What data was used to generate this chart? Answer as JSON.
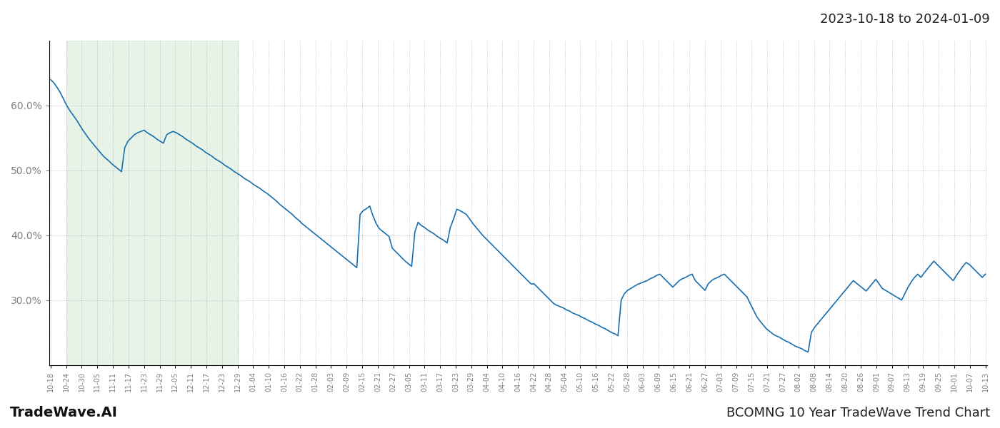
{
  "date_range_label": "2023-10-18 to 2024-01-09",
  "footer_left": "TradeWave.AI",
  "footer_right": "BCOMNG 10 Year TradeWave Trend Chart",
  "line_color": "#1a6faf",
  "line_width": 1.2,
  "shade_color": "#c8e6c9",
  "shade_alpha": 0.45,
  "bg_color": "#ffffff",
  "grid_color": "#aaaaaa",
  "grid_style": ":",
  "axis_color": "#000000",
  "tick_label_color": "#808080",
  "ylim_min": 0.2,
  "ylim_max": 0.7,
  "yticks": [
    0.3,
    0.4,
    0.5,
    0.6
  ],
  "x_labels": [
    "10-18",
    "10-24",
    "10-30",
    "11-05",
    "11-11",
    "11-17",
    "11-23",
    "11-29",
    "12-05",
    "12-11",
    "12-17",
    "12-23",
    "12-29",
    "01-04",
    "01-10",
    "01-16",
    "01-22",
    "01-28",
    "02-03",
    "02-09",
    "02-15",
    "02-21",
    "02-27",
    "03-05",
    "03-11",
    "03-17",
    "03-23",
    "03-29",
    "04-04",
    "04-10",
    "04-16",
    "04-22",
    "04-28",
    "05-04",
    "05-10",
    "05-16",
    "05-22",
    "05-28",
    "06-03",
    "06-09",
    "06-15",
    "06-21",
    "06-27",
    "07-03",
    "07-09",
    "07-15",
    "07-21",
    "07-27",
    "08-02",
    "08-08",
    "08-14",
    "08-20",
    "08-26",
    "09-01",
    "09-07",
    "09-13",
    "09-19",
    "09-25",
    "10-01",
    "10-07",
    "10-13"
  ],
  "shade_label_start": "10-24",
  "shade_label_end": "12-29",
  "y_values": [
    0.64,
    0.635,
    0.628,
    0.62,
    0.61,
    0.6,
    0.592,
    0.585,
    0.578,
    0.57,
    0.562,
    0.555,
    0.548,
    0.542,
    0.536,
    0.53,
    0.524,
    0.519,
    0.515,
    0.51,
    0.506,
    0.502,
    0.498,
    0.535,
    0.545,
    0.55,
    0.555,
    0.558,
    0.56,
    0.562,
    0.558,
    0.555,
    0.552,
    0.548,
    0.545,
    0.542,
    0.555,
    0.558,
    0.56,
    0.558,
    0.555,
    0.552,
    0.548,
    0.545,
    0.542,
    0.538,
    0.535,
    0.532,
    0.528,
    0.525,
    0.522,
    0.518,
    0.515,
    0.512,
    0.508,
    0.505,
    0.502,
    0.498,
    0.495,
    0.492,
    0.488,
    0.485,
    0.482,
    0.478,
    0.475,
    0.472,
    0.468,
    0.465,
    0.461,
    0.457,
    0.453,
    0.448,
    0.444,
    0.44,
    0.436,
    0.432,
    0.427,
    0.423,
    0.418,
    0.414,
    0.41,
    0.406,
    0.402,
    0.398,
    0.394,
    0.39,
    0.386,
    0.382,
    0.378,
    0.374,
    0.37,
    0.366,
    0.362,
    0.358,
    0.354,
    0.35,
    0.432,
    0.438,
    0.441,
    0.445,
    0.43,
    0.418,
    0.41,
    0.406,
    0.402,
    0.398,
    0.38,
    0.375,
    0.37,
    0.365,
    0.36,
    0.356,
    0.352,
    0.405,
    0.42,
    0.415,
    0.412,
    0.408,
    0.405,
    0.402,
    0.398,
    0.395,
    0.392,
    0.388,
    0.412,
    0.425,
    0.44,
    0.438,
    0.435,
    0.432,
    0.425,
    0.418,
    0.412,
    0.406,
    0.4,
    0.395,
    0.39,
    0.385,
    0.38,
    0.375,
    0.37,
    0.365,
    0.36,
    0.355,
    0.35,
    0.345,
    0.34,
    0.335,
    0.33,
    0.325,
    0.325,
    0.32,
    0.315,
    0.31,
    0.305,
    0.3,
    0.295,
    0.292,
    0.29,
    0.288,
    0.285,
    0.283,
    0.28,
    0.278,
    0.276,
    0.273,
    0.271,
    0.268,
    0.266,
    0.263,
    0.261,
    0.258,
    0.256,
    0.253,
    0.25,
    0.248,
    0.245,
    0.3,
    0.31,
    0.315,
    0.318,
    0.321,
    0.324,
    0.326,
    0.328,
    0.33,
    0.333,
    0.335,
    0.338,
    0.34,
    0.335,
    0.33,
    0.325,
    0.32,
    0.325,
    0.33,
    0.333,
    0.335,
    0.338,
    0.34,
    0.33,
    0.325,
    0.32,
    0.315,
    0.325,
    0.33,
    0.333,
    0.335,
    0.338,
    0.34,
    0.335,
    0.33,
    0.325,
    0.32,
    0.315,
    0.31,
    0.305,
    0.295,
    0.285,
    0.275,
    0.268,
    0.262,
    0.256,
    0.252,
    0.248,
    0.245,
    0.243,
    0.24,
    0.237,
    0.235,
    0.232,
    0.229,
    0.227,
    0.225,
    0.222,
    0.22,
    0.25,
    0.258,
    0.264,
    0.27,
    0.276,
    0.282,
    0.288,
    0.294,
    0.3,
    0.306,
    0.312,
    0.318,
    0.324,
    0.33,
    0.326,
    0.322,
    0.318,
    0.314,
    0.32,
    0.326,
    0.332,
    0.325,
    0.318,
    0.315,
    0.312,
    0.309,
    0.306,
    0.303,
    0.3,
    0.31,
    0.32,
    0.328,
    0.335,
    0.34,
    0.335,
    0.342,
    0.348,
    0.354,
    0.36,
    0.355,
    0.35,
    0.345,
    0.34,
    0.335,
    0.33,
    0.338,
    0.345,
    0.352,
    0.358,
    0.355,
    0.35,
    0.345,
    0.34,
    0.335,
    0.34
  ]
}
